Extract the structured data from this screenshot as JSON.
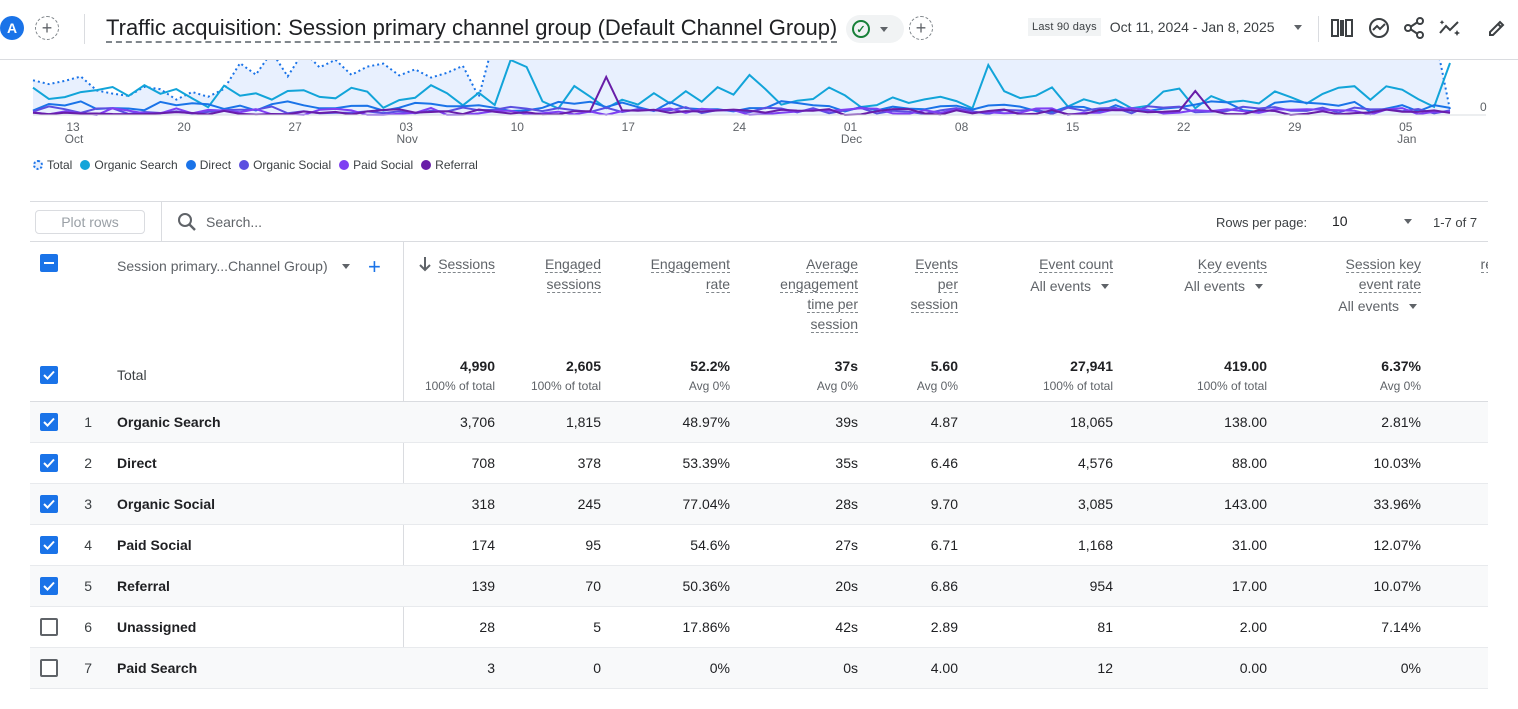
{
  "header": {
    "avatar_letter": "A",
    "title": "Traffic acquisition: Session primary channel group (Default Channel Group)",
    "date_prefix": "Last 90 days",
    "date_range": "Oct 11, 2024 - Jan 8, 2025"
  },
  "chart_data": {
    "type": "line",
    "x_ticks": [
      {
        "day": "13",
        "month": "Oct"
      },
      {
        "day": "20",
        "month": ""
      },
      {
        "day": "27",
        "month": ""
      },
      {
        "day": "03",
        "month": "Nov"
      },
      {
        "day": "10",
        "month": ""
      },
      {
        "day": "17",
        "month": ""
      },
      {
        "day": "24",
        "month": ""
      },
      {
        "day": "01",
        "month": "Dec"
      },
      {
        "day": "08",
        "month": ""
      },
      {
        "day": "15",
        "month": ""
      },
      {
        "day": "22",
        "month": ""
      },
      {
        "day": "29",
        "month": ""
      },
      {
        "day": "05",
        "month": "Jan"
      }
    ],
    "y_tick_visible": "0",
    "legend": [
      {
        "name": "Total",
        "color": "#1a73e8",
        "style": "dotted"
      },
      {
        "name": "Organic Search",
        "color": "#12a4d9",
        "style": "solid"
      },
      {
        "name": "Direct",
        "color": "#1a73e8",
        "style": "solid"
      },
      {
        "name": "Organic Social",
        "color": "#5b4fe0",
        "style": "solid"
      },
      {
        "name": "Paid Social",
        "color": "#7e3ff2",
        "style": "solid"
      },
      {
        "name": "Referral",
        "color": "#681da8",
        "style": "solid"
      }
    ]
  },
  "toolbar": {
    "plot_rows_label": "Plot rows",
    "search_placeholder": "Search...",
    "rows_per_page_label": "Rows per page:",
    "rows_per_page_value": "10",
    "pager_text": "1-7 of 7"
  },
  "table": {
    "dimension_header": "Session primary...Channel Group)",
    "columns": [
      {
        "label_lines": [
          "Sessions"
        ],
        "sub": ""
      },
      {
        "label_lines": [
          "Engaged",
          "sessions"
        ],
        "sub": ""
      },
      {
        "label_lines": [
          "Engagement",
          "rate"
        ],
        "sub": ""
      },
      {
        "label_lines": [
          "Average",
          "engagement",
          "time per",
          "session"
        ],
        "sub": ""
      },
      {
        "label_lines": [
          "Events",
          "per",
          "session"
        ],
        "sub": ""
      },
      {
        "label_lines": [
          "Event count"
        ],
        "sub": "All events"
      },
      {
        "label_lines": [
          "Key events"
        ],
        "sub": "All events"
      },
      {
        "label_lines": [
          "Session key",
          "event rate"
        ],
        "sub": "All events"
      },
      {
        "label_lines": [
          "rev"
        ],
        "sub": ""
      }
    ],
    "total": {
      "label": "Total",
      "values": [
        "4,990",
        "2,605",
        "52.2%",
        "37s",
        "5.60",
        "27,941",
        "419.00",
        "6.37%",
        "$"
      ],
      "subs": [
        "100% of total",
        "100% of total",
        "Avg 0%",
        "Avg 0%",
        "Avg 0%",
        "100% of total",
        "100% of total",
        "Avg 0%",
        ""
      ]
    },
    "rows": [
      {
        "num": "1",
        "label": "Organic Search",
        "checked": true,
        "values": [
          "3,706",
          "1,815",
          "48.97%",
          "39s",
          "4.87",
          "18,065",
          "138.00",
          "2.81%",
          "$"
        ]
      },
      {
        "num": "2",
        "label": "Direct",
        "checked": true,
        "values": [
          "708",
          "378",
          "53.39%",
          "35s",
          "6.46",
          "4,576",
          "88.00",
          "10.03%",
          "$"
        ]
      },
      {
        "num": "3",
        "label": "Organic Social",
        "checked": true,
        "values": [
          "318",
          "245",
          "77.04%",
          "28s",
          "9.70",
          "3,085",
          "143.00",
          "33.96%",
          "$"
        ]
      },
      {
        "num": "4",
        "label": "Paid Social",
        "checked": true,
        "values": [
          "174",
          "95",
          "54.6%",
          "27s",
          "6.71",
          "1,168",
          "31.00",
          "12.07%",
          "$"
        ]
      },
      {
        "num": "5",
        "label": "Referral",
        "checked": true,
        "values": [
          "139",
          "70",
          "50.36%",
          "20s",
          "6.86",
          "954",
          "17.00",
          "10.07%",
          "$"
        ]
      },
      {
        "num": "6",
        "label": "Unassigned",
        "checked": false,
        "values": [
          "28",
          "5",
          "17.86%",
          "42s",
          "2.89",
          "81",
          "2.00",
          "7.14%",
          "$"
        ]
      },
      {
        "num": "7",
        "label": "Paid Search",
        "checked": false,
        "values": [
          "3",
          "0",
          "0%",
          "0s",
          "4.00",
          "12",
          "0.00",
          "0%",
          "$"
        ]
      }
    ]
  }
}
